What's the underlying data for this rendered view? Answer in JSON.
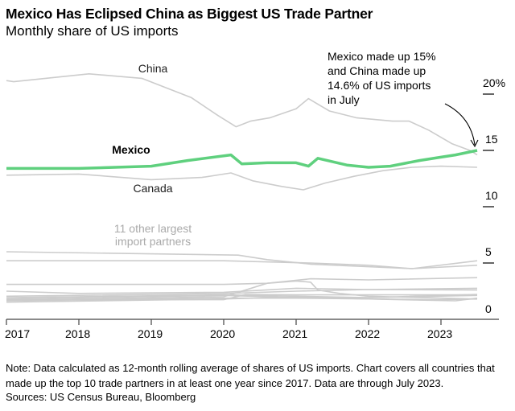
{
  "title": "Mexico Has Eclipsed China as Biggest US Trade Partner",
  "subtitle": "Monthly share of US imports",
  "note": "Note: Data calculated as 12-month rolling average of shares of US imports. Chart covers all countries that made up the top 10 trade partners in at least one year since 2017. Data are through July 2023.",
  "sources": "Sources: US Census Bureau, Bloomberg",
  "chart_data": {
    "type": "line",
    "ylim": [
      0,
      22
    ],
    "yticks": [
      {
        "v": 20,
        "label": "20%"
      },
      {
        "v": 15,
        "label": "15"
      },
      {
        "v": 10,
        "label": "10"
      },
      {
        "v": 5,
        "label": "5"
      },
      {
        "v": 0,
        "label": "0"
      }
    ],
    "xticks": [
      "2017",
      "2018",
      "2019",
      "2020",
      "2021",
      "2022",
      "2023"
    ],
    "colors": {
      "mexico": "#5fd07e",
      "other": "#cccccc",
      "axis": "#444444"
    },
    "annotation": [
      "Mexico made up 15%",
      "and China made up",
      "14.6% of US imports",
      "in July"
    ],
    "series": [
      {
        "name": "China",
        "label": "China",
        "x": [
          2017.0,
          2017.1,
          2018.14,
          2018.87,
          2019.19,
          2019.55,
          2019.92,
          2020.17,
          2020.37,
          2020.64,
          2021.0,
          2021.17,
          2021.46,
          2021.83,
          2022.33,
          2022.56,
          2022.83,
          2023.15,
          2023.4,
          2023.5
        ],
        "y": [
          21.2,
          21.1,
          21.8,
          21.4,
          20.6,
          19.7,
          18.1,
          17.1,
          17.6,
          17.9,
          18.7,
          19.6,
          18.5,
          17.9,
          17.6,
          17.6,
          16.8,
          15.6,
          15.0,
          14.6
        ]
      },
      {
        "name": "Mexico",
        "label": "Mexico",
        "highlight": true,
        "x": [
          2017.0,
          2018.0,
          2019.0,
          2019.5,
          2020.1,
          2020.25,
          2020.6,
          2021.0,
          2021.17,
          2021.3,
          2021.7,
          2022.0,
          2022.3,
          2022.7,
          2023.0,
          2023.2,
          2023.5
        ],
        "y": [
          13.4,
          13.4,
          13.6,
          14.1,
          14.6,
          13.8,
          13.9,
          13.9,
          13.6,
          14.3,
          13.7,
          13.5,
          13.6,
          14.1,
          14.4,
          14.6,
          15.0
        ]
      },
      {
        "name": "Canada",
        "label": "Canada",
        "x": [
          2017.0,
          2018.0,
          2019.0,
          2019.7,
          2020.1,
          2020.4,
          2020.8,
          2021.1,
          2021.4,
          2021.8,
          2022.2,
          2022.6,
          2023.0,
          2023.5
        ],
        "y": [
          12.8,
          12.9,
          12.4,
          12.6,
          13.0,
          12.3,
          11.8,
          11.5,
          12.1,
          12.7,
          13.2,
          13.5,
          13.6,
          13.5
        ]
      },
      {
        "group": "11 other largest import partners",
        "x": [
          2017.0,
          2020.2,
          2020.6,
          2021.2,
          2022.6,
          2023.5
        ],
        "y": [
          6.0,
          5.7,
          5.3,
          4.9,
          4.5,
          5.2
        ]
      },
      {
        "group": "11 other largest import partners",
        "x": [
          2017.0,
          2020.0,
          2021.2,
          2022.0,
          2022.6,
          2023.5
        ],
        "y": [
          5.2,
          5.2,
          5.0,
          4.8,
          4.5,
          4.8
        ]
      },
      {
        "group": "11 other largest import partners",
        "x": [
          2017.0,
          2020.0,
          2020.6,
          2021.2,
          2022.0,
          2023.5
        ],
        "y": [
          3.1,
          3.1,
          3.2,
          3.6,
          3.5,
          3.7
        ]
      },
      {
        "group": "11 other largest import partners",
        "x": [
          2017.0,
          2020.0,
          2020.6,
          2021.0,
          2021.2,
          2021.3,
          2021.6,
          2022.0,
          2023.5
        ],
        "y": [
          1.7,
          2.0,
          3.2,
          3.4,
          3.3,
          2.6,
          2.3,
          2.05,
          1.8
        ]
      },
      {
        "group": "11 other largest import partners",
        "x": [
          2017.0,
          2018.0,
          2020.0,
          2021.0,
          2022.0,
          2023.5
        ],
        "y": [
          2.5,
          2.3,
          2.4,
          2.76,
          2.64,
          2.76
        ]
      },
      {
        "group": "11 other largest import partners",
        "x": [
          2017.0,
          2020.0,
          2021.0,
          2022.0,
          2023.5
        ],
        "y": [
          2.05,
          2.29,
          2.5,
          2.64,
          2.6
        ]
      },
      {
        "group": "11 other largest import partners",
        "x": [
          2017.0,
          2020.0,
          2021.0,
          2022.0,
          2023.5
        ],
        "y": [
          1.93,
          2.17,
          2.05,
          1.93,
          2.12
        ]
      },
      {
        "group": "11 other largest import partners",
        "x": [
          2017.0,
          2020.0,
          2021.0,
          2022.0,
          2023.5
        ],
        "y": [
          1.81,
          2.12,
          1.93,
          1.93,
          2.21
        ]
      },
      {
        "group": "11 other largest import partners",
        "x": [
          2017.0,
          2020.0,
          2020.3,
          2021.0,
          2023.5
        ],
        "y": [
          1.74,
          1.74,
          2.2,
          2.17,
          2.17
        ]
      },
      {
        "group": "11 other largest import partners",
        "x": [
          2017.0,
          2020.0,
          2021.0,
          2023.0,
          2023.5
        ],
        "y": [
          1.64,
          1.88,
          1.88,
          1.74,
          1.81
        ]
      },
      {
        "group": "11 other largest import partners",
        "x": [
          2017.0,
          2020.0,
          2021.0,
          2022.0,
          2023.2,
          2023.5
        ],
        "y": [
          1.52,
          1.81,
          1.98,
          1.81,
          1.64,
          1.88
        ]
      }
    ],
    "group_label": [
      "11 other largest",
      "import partners"
    ]
  }
}
